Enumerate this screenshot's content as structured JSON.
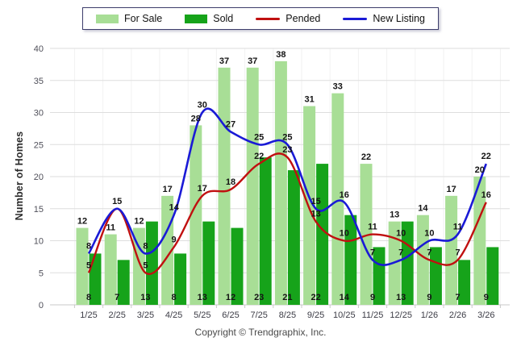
{
  "legend": {
    "items": [
      {
        "label": "For Sale",
        "swatch": "box",
        "color": "#A8DE96"
      },
      {
        "label": "Sold",
        "swatch": "box",
        "color": "#16A31A"
      },
      {
        "label": "Pended",
        "swatch": "line",
        "color": "#C01010"
      },
      {
        "label": "New Listing",
        "swatch": "line",
        "color": "#1A1AD6"
      }
    ]
  },
  "axes": {
    "y_label": "Number of Homes",
    "y_ticks": [
      0,
      5,
      10,
      15,
      20,
      25,
      30,
      35,
      40
    ]
  },
  "footer": {
    "copyright": "Copyright © Trendgraphix, Inc."
  },
  "chart_data": {
    "type": "bar",
    "title": "",
    "xlabel": "",
    "ylabel": "Number of Homes",
    "ylim": [
      0,
      40
    ],
    "grid": "horizontal",
    "legend_position": "top",
    "categories": [
      "1/25",
      "2/25",
      "3/25",
      "4/25",
      "5/25",
      "6/25",
      "7/25",
      "8/25",
      "9/25",
      "10/25",
      "11/25",
      "12/25",
      "1/26",
      "2/26",
      "3/26"
    ],
    "series": [
      {
        "name": "For Sale",
        "type": "bar",
        "color": "#A8DE96",
        "values": [
          12,
          11,
          12,
          17,
          28,
          37,
          37,
          38,
          31,
          33,
          22,
          13,
          14,
          17,
          20
        ]
      },
      {
        "name": "Sold",
        "type": "bar",
        "color": "#16A31A",
        "values": [
          8,
          7,
          13,
          8,
          13,
          12,
          23,
          21,
          22,
          14,
          9,
          13,
          9,
          7,
          9
        ]
      },
      {
        "name": "Pended",
        "type": "line",
        "color": "#C01010",
        "values": [
          5,
          15,
          5,
          9,
          17,
          18,
          22,
          23,
          13,
          10,
          11,
          10,
          7,
          7,
          16
        ]
      },
      {
        "name": "New Listing",
        "type": "line",
        "color": "#1A1AD6",
        "values": [
          8,
          15,
          8,
          14,
          30,
          27,
          25,
          25,
          15,
          16,
          7,
          7,
          10,
          11,
          22
        ]
      }
    ]
  }
}
